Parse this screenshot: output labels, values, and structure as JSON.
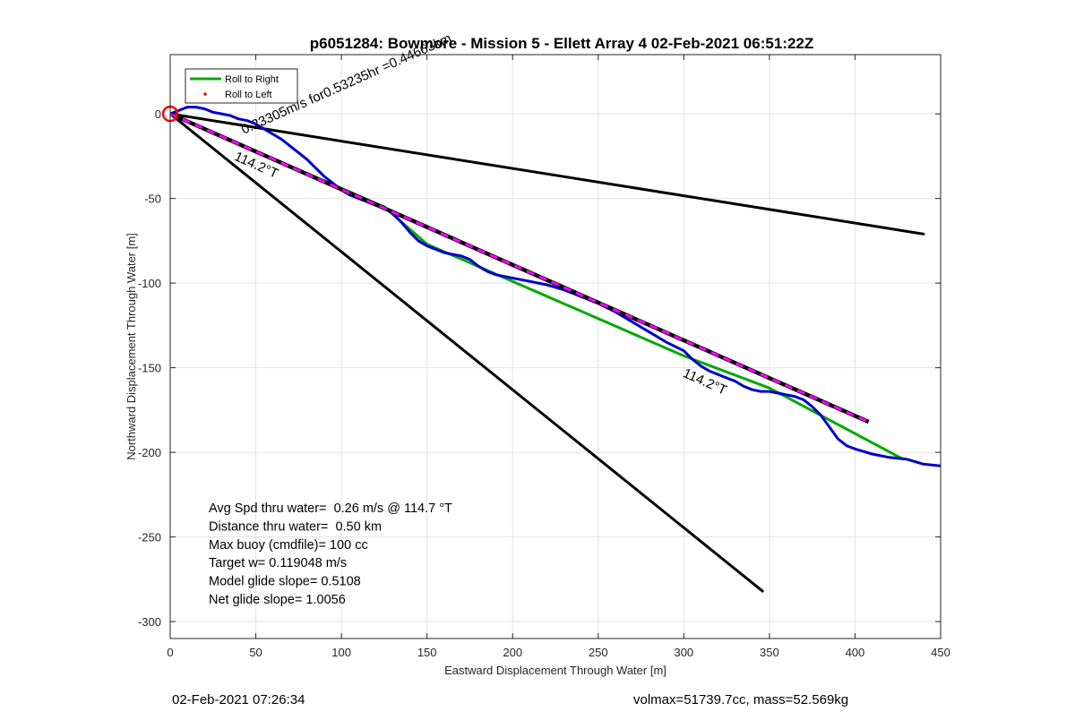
{
  "chart_data": {
    "type": "line",
    "title": "p6051284: Bowmore - Mission 5 - Ellett Array 4 02-Feb-2021 06:51:22Z",
    "xlabel": "Eastward Displacement Through Water [m]",
    "ylabel": "Northward Displacement Through Water [m]",
    "xlim": [
      0,
      450
    ],
    "ylim": [
      -310,
      35
    ],
    "xticks": [
      0,
      50,
      100,
      150,
      200,
      250,
      300,
      350,
      400,
      450
    ],
    "yticks": [
      0,
      -50,
      -100,
      -150,
      -200,
      -250,
      -300
    ],
    "xtick_labels": [
      "0",
      "50",
      "100",
      "150",
      "200",
      "250",
      "300",
      "350",
      "400",
      "450"
    ],
    "ytick_labels": [
      "0",
      "-50",
      "-100",
      "-150",
      "-200",
      "-250",
      "-300"
    ],
    "grid": true,
    "legend": {
      "position": "top-left",
      "entries": [
        {
          "label": "Roll to Right",
          "color": "#00aa00",
          "style": "line"
        },
        {
          "label": "Roll to Left",
          "color": "#ff0000",
          "style": "dot"
        }
      ]
    },
    "series": [
      {
        "name": "Roll to Right",
        "color": "#00aa00",
        "x": [
          0,
          125,
          150,
          200,
          300,
          350,
          428
        ],
        "y": [
          0,
          -55,
          -77,
          -99,
          -143,
          -162,
          -204
        ]
      },
      {
        "color": "#0000cc",
        "x": [
          0,
          5,
          10,
          15,
          20,
          25,
          30,
          35,
          40,
          45,
          50,
          55,
          60,
          65,
          70,
          75,
          80,
          85,
          90,
          95,
          100,
          105,
          110,
          115,
          120,
          125,
          130,
          135,
          140,
          145,
          150,
          155,
          160,
          165,
          170,
          175,
          180,
          185,
          190,
          200,
          210,
          220,
          230,
          240,
          250,
          260,
          270,
          280,
          290,
          300,
          305,
          310,
          315,
          320,
          325,
          330,
          335,
          340,
          345,
          350,
          355,
          360,
          365,
          370,
          375,
          380,
          385,
          390,
          395,
          400,
          410,
          420,
          430,
          440,
          450
        ],
        "y": [
          0,
          2,
          4,
          4,
          3,
          1,
          0,
          -1,
          -3,
          -4,
          -6,
          -9,
          -12,
          -15,
          -19,
          -23,
          -27,
          -32,
          -37,
          -41,
          -45,
          -48,
          -50,
          -52,
          -54,
          -55,
          -59,
          -64,
          -70,
          -75,
          -78,
          -80,
          -82,
          -83,
          -84,
          -86,
          -90,
          -93,
          -95,
          -97,
          -99,
          -101,
          -104,
          -108,
          -112,
          -117,
          -123,
          -129,
          -135,
          -140,
          -145,
          -149,
          -152,
          -154,
          -156,
          -158,
          -161,
          -163,
          -164,
          -164,
          -165,
          -166,
          -167,
          -169,
          -173,
          -178,
          -185,
          -192,
          -196,
          -198,
          -201,
          -203,
          -204,
          -207,
          -208
        ]
      },
      {
        "color": "#ff00ff",
        "style": "dashed-black",
        "x": [
          0,
          408
        ],
        "y": [
          0,
          -182
        ]
      },
      {
        "color": "#000000",
        "x": [
          0,
          440
        ],
        "y": [
          0,
          -71
        ]
      },
      {
        "color": "#000000",
        "x": [
          0,
          346
        ],
        "y": [
          0,
          -282
        ]
      }
    ],
    "markers": [
      {
        "type": "circle",
        "color": "#ff0000",
        "x": 0,
        "y": 0
      }
    ],
    "annotations": [
      {
        "text": "0.23305m/s for0.53235hr =0.44663km",
        "x": 43,
        "y": -12,
        "rotation": -24
      },
      {
        "text": "114.2°T",
        "x": 37,
        "y": -27,
        "rotation": 24
      },
      {
        "text": "114.2°T",
        "x": 299,
        "y": -155,
        "rotation": 24
      }
    ],
    "stats": [
      "Avg Spd thru water=  0.26 m/s @ 114.7 °T",
      "Distance thru water=  0.50 km",
      "Max buoy (cmdfile)= 100 cc",
      "Target w= 0.119048 m/s",
      "Model glide slope= 0.5108",
      "Net glide slope= 1.0056"
    ]
  },
  "footer": {
    "timestamp": "02-Feb-2021 07:26:34",
    "volmax_mass": "volmax=51739.7cc, mass=52.569kg"
  }
}
